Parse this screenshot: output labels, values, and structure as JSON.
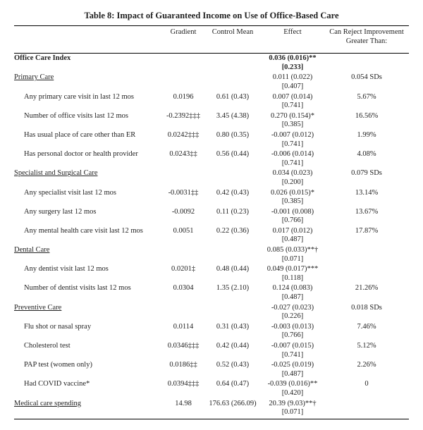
{
  "title": "Table 8: Impact of Guaranteed Income on Use of Office-Based Care",
  "headers": {
    "gradient": "Gradient",
    "control_mean": "Control Mean",
    "effect": "Effect",
    "reject": "Can Reject Improvement Greater Than:"
  },
  "index_label": "Office Care Index",
  "index_effect": "0.036 (0.016)**",
  "index_q": "[0.233]",
  "sections": [
    {
      "label": "Primary Care",
      "effect": "0.011 (0.022)",
      "q": "[0.407]",
      "reject": "0.054 SDs",
      "rows": [
        {
          "label": "Any primary care visit in last 12 mos",
          "gradient": "0.0196",
          "ctrl": "0.61 (0.43)",
          "effect": "0.007 (0.014)",
          "q": "[0.741]",
          "reject": "5.67%"
        },
        {
          "label": "Number of office visits last 12 mos",
          "gradient": "-0.2392‡‡‡",
          "ctrl": "3.45 (4.38)",
          "effect": "0.270 (0.154)*",
          "q": "[0.385]",
          "reject": "16.56%"
        },
        {
          "label": "Has usual place of care other than ER",
          "gradient": "0.0242‡‡‡",
          "ctrl": "0.80 (0.35)",
          "effect": "-0.007 (0.012)",
          "q": "[0.741]",
          "reject": "1.99%"
        },
        {
          "label": "Has personal doctor or health provider",
          "gradient": "0.0243‡‡",
          "ctrl": "0.56 (0.44)",
          "effect": "-0.006 (0.014)",
          "q": "[0.741]",
          "reject": "4.08%"
        }
      ]
    },
    {
      "label": "Specialist and Surgical Care",
      "effect": "0.034 (0.023)",
      "q": "[0.200]",
      "reject": "0.079 SDs",
      "rows": [
        {
          "label": "Any specialist visit last 12 mos",
          "gradient": "-0.0031‡‡",
          "ctrl": "0.42 (0.43)",
          "effect": "0.026 (0.015)*",
          "q": "[0.385]",
          "reject": "13.14%"
        },
        {
          "label": "Any surgery last 12 mos",
          "gradient": "-0.0092",
          "ctrl": "0.11 (0.23)",
          "effect": "-0.001 (0.008)",
          "q": "[0.766]",
          "reject": "13.67%"
        },
        {
          "label": "Any mental health care visit last 12 mos",
          "gradient": "0.0051",
          "ctrl": "0.22 (0.36)",
          "effect": "0.017 (0.012)",
          "q": "[0.487]",
          "reject": "17.87%"
        }
      ]
    },
    {
      "label": "Dental Care",
      "effect": "0.085 (0.033)**†",
      "q": "[0.071]",
      "reject": "",
      "rows": [
        {
          "label": "Any dentist visit last 12 mos",
          "gradient": "0.0201‡",
          "ctrl": "0.48 (0.44)",
          "effect": "0.049 (0.017)***",
          "q": "[0.118]",
          "reject": ""
        },
        {
          "label": "Number of dentist visits last 12 mos",
          "gradient": "0.0304",
          "ctrl": "1.35 (2.10)",
          "effect": "0.124 (0.083)",
          "q": "[0.487]",
          "reject": "21.26%"
        }
      ]
    },
    {
      "label": "Preventive Care",
      "effect": "-0.027 (0.023)",
      "q": "[0.226]",
      "reject": "0.018 SDs",
      "rows": [
        {
          "label": "Flu shot or nasal spray",
          "gradient": "0.0114",
          "ctrl": "0.31 (0.43)",
          "effect": "-0.003 (0.013)",
          "q": "[0.766]",
          "reject": "7.46%"
        },
        {
          "label": "Cholesterol test",
          "gradient": "0.0346‡‡‡",
          "ctrl": "0.42 (0.44)",
          "effect": "-0.007 (0.015)",
          "q": "[0.741]",
          "reject": "5.12%"
        },
        {
          "label": "PAP test (women only)",
          "gradient": "0.0186‡‡",
          "ctrl": "0.52 (0.43)",
          "effect": "-0.025 (0.019)",
          "q": "[0.487]",
          "reject": "2.26%"
        },
        {
          "label": "Had COVID vaccine*",
          "gradient": "0.0394‡‡‡",
          "ctrl": "0.64 (0.47)",
          "effect": "-0.039 (0.016)**",
          "q": "[0.420]",
          "reject": "0"
        }
      ]
    }
  ],
  "footer": {
    "label": "Medical care spending",
    "gradient": "14.98",
    "ctrl": "176.63 (266.09)",
    "effect": "20.39 (9.03)**†",
    "q": "[0.071]",
    "reject": ""
  }
}
